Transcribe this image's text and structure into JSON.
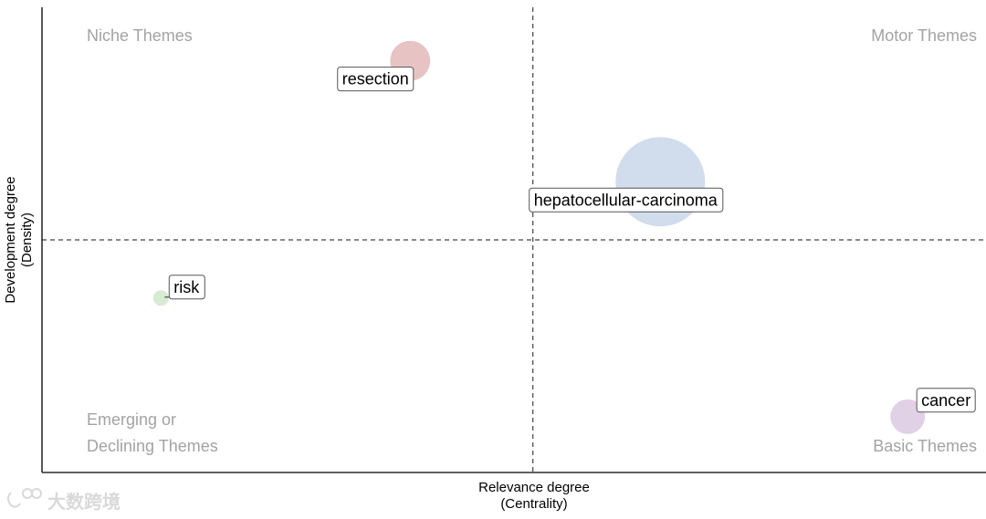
{
  "chart_data": {
    "type": "scatter",
    "xlabel_line1": "Relevance degree",
    "xlabel_line2": "(Centrality)",
    "ylabel_line1": "Development degree",
    "ylabel_line2": "(Density)",
    "quadrants": {
      "top_left": "Niche Themes",
      "top_right": "Motor Themes",
      "bottom_left_line1": "Emerging or",
      "bottom_left_line2": "Declining Themes",
      "bottom_right": "Basic Themes"
    },
    "points": [
      {
        "label": "resection",
        "x": 0.39,
        "y": 0.885,
        "size": 2.0,
        "color": "#e3b9b9"
      },
      {
        "label": "hepatocellular-carcinoma",
        "x": 0.655,
        "y": 0.625,
        "size": 10.0,
        "color": "#c9d7ea"
      },
      {
        "label": "risk",
        "x": 0.126,
        "y": 0.375,
        "size": 0.3,
        "color": "#cfe7c9"
      },
      {
        "label": "cancer",
        "x": 0.917,
        "y": 0.12,
        "size": 1.5,
        "color": "#dcc9e3"
      }
    ],
    "x_divider": 0.52,
    "y_divider": 0.5,
    "grid": false,
    "watermark": "大数跨境"
  }
}
